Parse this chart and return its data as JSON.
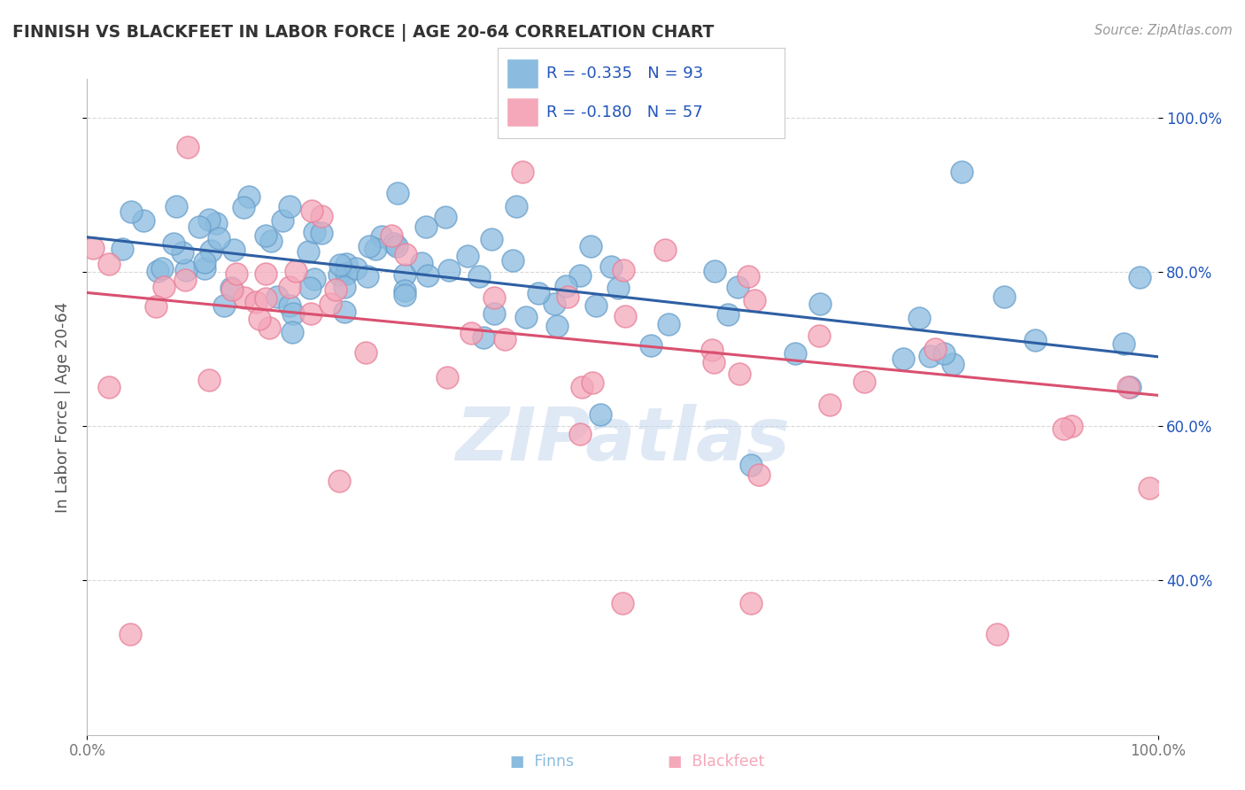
{
  "title": "FINNISH VS BLACKFEET IN LABOR FORCE | AGE 20-64 CORRELATION CHART",
  "source": "Source: ZipAtlas.com",
  "ylabel": "In Labor Force | Age 20-64",
  "xlim": [
    0,
    1
  ],
  "ylim": [
    0.2,
    1.05
  ],
  "finns_color": "#8bbcdf",
  "blackfeet_color": "#f4a8ba",
  "finns_edge_color": "#6aa0cc",
  "blackfeet_edge_color": "#e8809a",
  "finns_line_color": "#2e5fa3",
  "blackfeet_line_color": "#d95070",
  "legend_finns_R": "-0.335",
  "legend_finns_N": "93",
  "legend_blackfeet_R": "-0.180",
  "legend_blackfeet_N": "57",
  "watermark": "ZIPatlas",
  "background_color": "#ffffff",
  "grid_color": "#d8d8d8",
  "title_color": "#333333",
  "axis_label_color": "#555555",
  "legend_text_color": "#2255bb",
  "finns_line_y_start": 0.845,
  "finns_line_y_end": 0.69,
  "blackfeet_line_y_start": 0.773,
  "blackfeet_line_y_end": 0.64,
  "marker_size": 320
}
